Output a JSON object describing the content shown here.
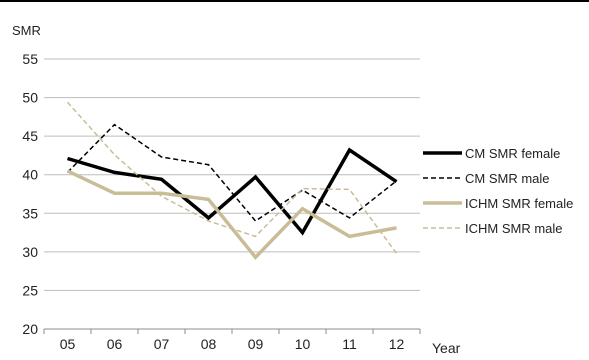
{
  "chart_data": {
    "type": "line",
    "title": "",
    "ylabel": "SMR",
    "xlabel": "Year",
    "categories": [
      "05",
      "06",
      "07",
      "08",
      "09",
      "10",
      "11",
      "12"
    ],
    "ylim": [
      20,
      55
    ],
    "yticks": [
      20,
      25,
      30,
      35,
      40,
      45,
      50,
      55
    ],
    "grid": "horizontal",
    "legend_position": "right",
    "series": [
      {
        "name": "CM SMR female",
        "color": "#000000",
        "style": "solid-thick",
        "values": [
          42.1,
          40.3,
          39.4,
          34.4,
          39.7,
          32.5,
          43.2,
          39.1
        ]
      },
      {
        "name": "CM SMR male",
        "color": "#000000",
        "style": "dashed-thin",
        "values": [
          40.3,
          46.5,
          42.3,
          41.3,
          34.0,
          38.0,
          34.4,
          39.2
        ]
      },
      {
        "name": "ICHM SMR female",
        "color": "#c9bd97",
        "style": "solid-thick",
        "values": [
          40.5,
          37.6,
          37.6,
          36.8,
          29.3,
          35.6,
          32.0,
          33.1
        ]
      },
      {
        "name": "ICHM SMR male",
        "color": "#c9bd97",
        "style": "dashed-thin",
        "values": [
          49.4,
          42.6,
          37.2,
          34.0,
          32.0,
          38.2,
          38.1,
          29.8
        ]
      }
    ]
  }
}
